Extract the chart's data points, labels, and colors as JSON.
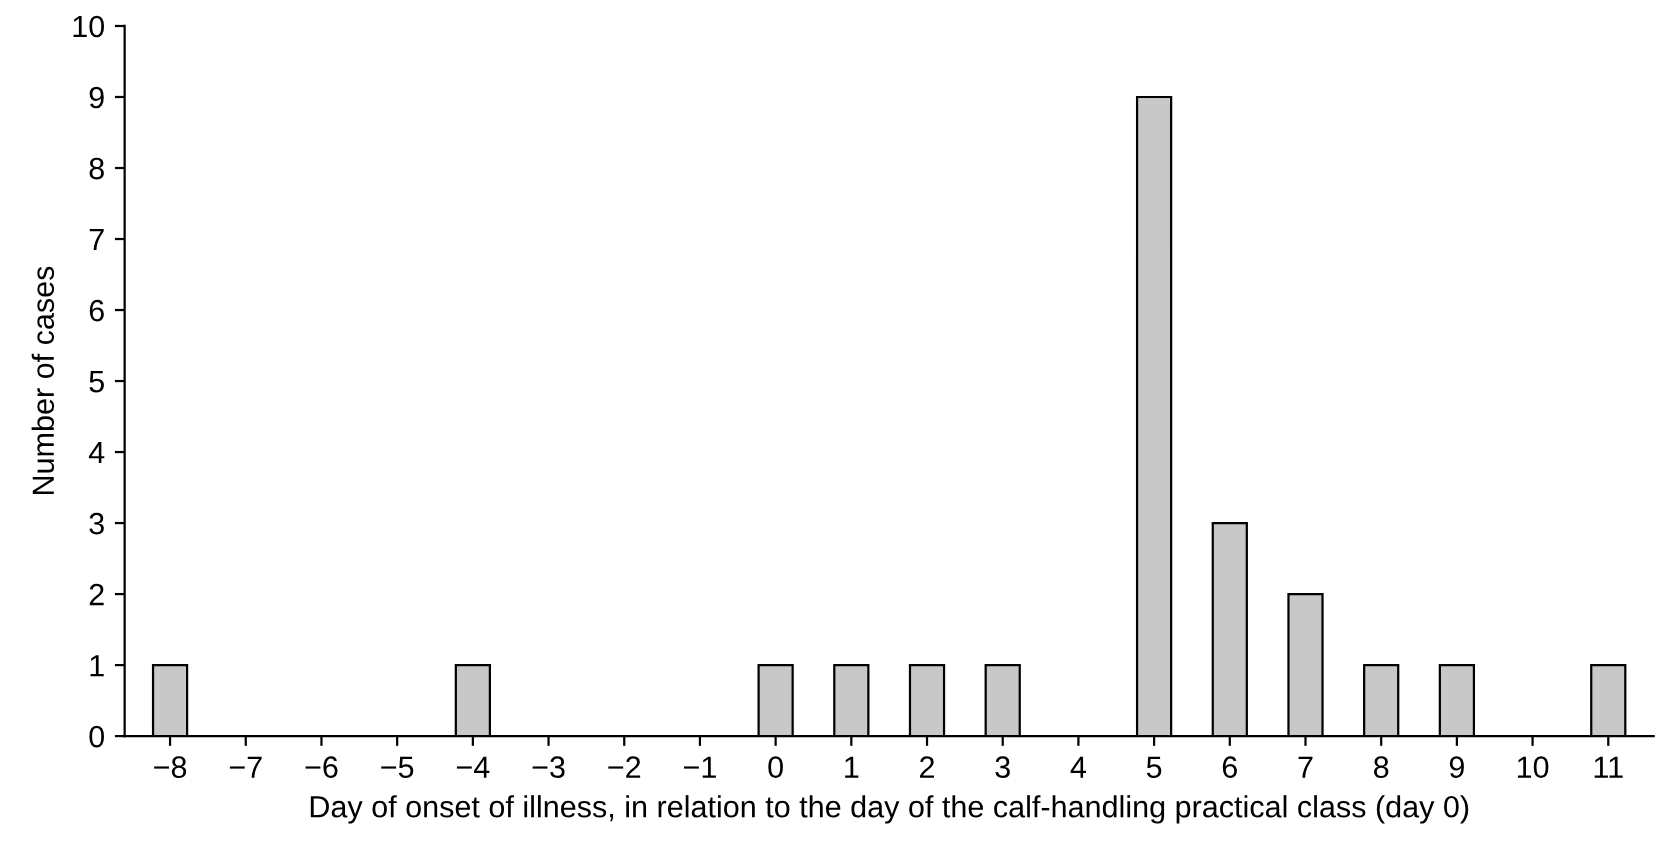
{
  "chart_data": {
    "type": "bar",
    "xlabel": "Day of onset of illness, in relation to the day of the calf-handling practical class (day 0)",
    "ylabel": "Number of cases",
    "categories": [
      "−8",
      "−7",
      "−6",
      "−5",
      "−4",
      "−3",
      "−2",
      "−1",
      "0",
      "1",
      "2",
      "3",
      "4",
      "5",
      "6",
      "7",
      "8",
      "9",
      "10",
      "11"
    ],
    "values": [
      1,
      0,
      0,
      0,
      1,
      0,
      0,
      0,
      1,
      1,
      1,
      1,
      0,
      9,
      3,
      2,
      1,
      1,
      0,
      1
    ],
    "color": "#c8c8c8",
    "ylim": [
      0,
      10
    ],
    "yticks": [
      0,
      1,
      2,
      3,
      4,
      5,
      6,
      7,
      8,
      9,
      10
    ],
    "grid": false,
    "legend": false
  }
}
